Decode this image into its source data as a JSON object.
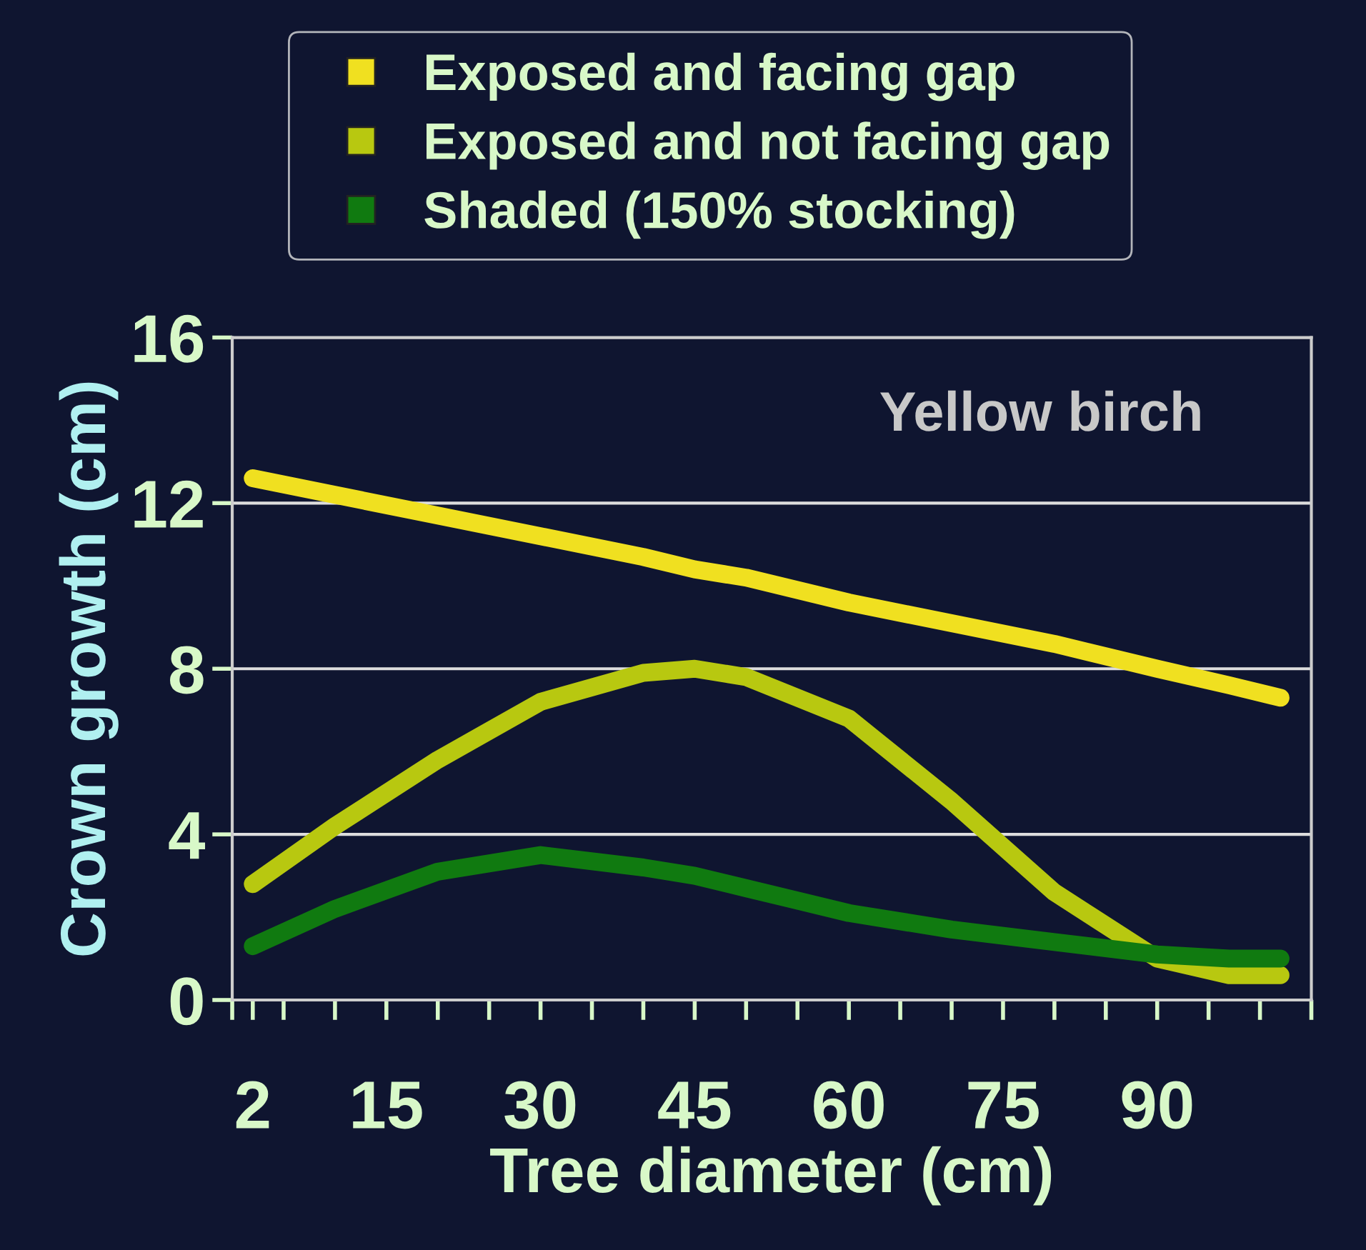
{
  "chart_data": {
    "type": "line",
    "xlabel": "Tree diameter (cm)",
    "ylabel": "Crown growth (cm)",
    "annotations": [
      "Yellow birch"
    ],
    "x": [
      2,
      10,
      20,
      30,
      40,
      45,
      50,
      60,
      70,
      80,
      90,
      97,
      102
    ],
    "series": [
      {
        "name": "Exposed and facing gap",
        "color": "#f0e020",
        "values": [
          12.6,
          12.2,
          11.7,
          11.2,
          10.7,
          10.4,
          10.2,
          9.6,
          9.1,
          8.6,
          8.0,
          7.6,
          7.3
        ]
      },
      {
        "name": "Exposed and not facing gap",
        "color": "#b8c810",
        "values": [
          2.8,
          4.2,
          5.8,
          7.2,
          7.9,
          8.0,
          7.8,
          6.8,
          4.8,
          2.6,
          1.0,
          0.6,
          0.6
        ]
      },
      {
        "name": "Shaded (150% stocking)",
        "color": "#107a10",
        "values": [
          1.3,
          2.2,
          3.1,
          3.5,
          3.2,
          3.0,
          2.7,
          2.1,
          1.7,
          1.4,
          1.1,
          1.0,
          1.0
        ]
      }
    ],
    "xlim": [
      0,
      105
    ],
    "xticks": [
      {
        "value": 0,
        "label": null
      },
      2,
      {
        "value": 5,
        "label": null
      },
      {
        "value": 10,
        "label": null
      },
      15,
      {
        "value": 20,
        "label": null
      },
      {
        "value": 25,
        "label": null
      },
      30,
      {
        "value": 35,
        "label": null
      },
      {
        "value": 40,
        "label": null
      },
      45,
      {
        "value": 50,
        "label": null
      },
      {
        "value": 55,
        "label": null
      },
      60,
      {
        "value": 65,
        "label": null
      },
      {
        "value": 70,
        "label": null
      },
      75,
      {
        "value": 80,
        "label": null
      },
      {
        "value": 85,
        "label": null
      },
      90,
      {
        "value": 95,
        "label": null
      },
      {
        "value": 100,
        "label": null
      },
      {
        "value": 105,
        "label": null
      }
    ],
    "ylim": [
      0,
      16
    ],
    "yticks": [
      0,
      4,
      8,
      12,
      16
    ],
    "grid": "y",
    "legend": "top",
    "line_style": "solid"
  }
}
